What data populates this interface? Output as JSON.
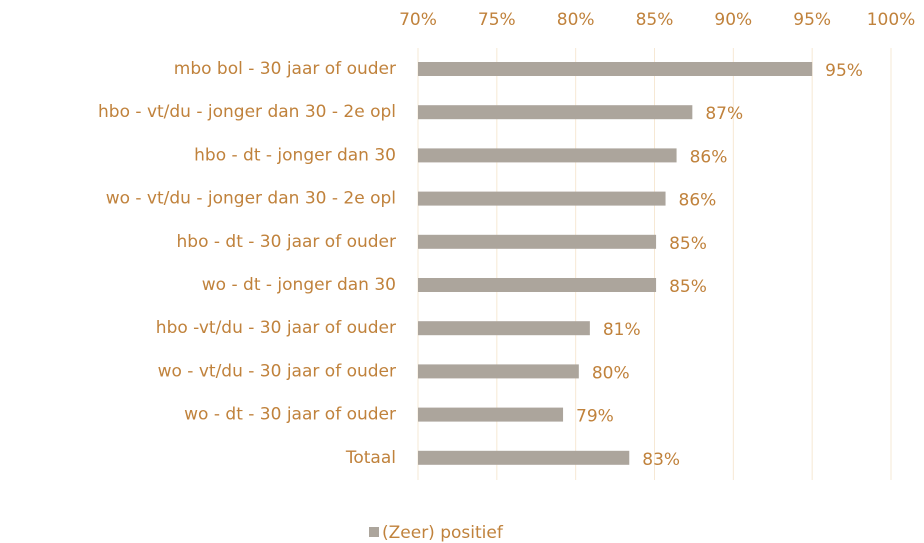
{
  "chart_data": {
    "type": "bar",
    "orientation": "horizontal",
    "categories": [
      "mbo bol - 30 jaar of ouder",
      "hbo - vt/du - jonger dan 30 - 2e opl",
      "hbo - dt - jonger dan 30",
      "wo - vt/du - jonger dan 30 - 2e opl",
      "hbo - dt - 30 jaar of ouder",
      "wo - dt - jonger dan 30",
      "hbo -vt/du - 30 jaar of ouder",
      "wo - vt/du - 30 jaar of ouder",
      "wo - dt - 30 jaar of ouder",
      "Totaal"
    ],
    "series": [
      {
        "name": "(Zeer) positief",
        "color": "#aca59c",
        "values": [
          95.0,
          87.4,
          86.4,
          85.7,
          85.1,
          85.1,
          80.9,
          80.2,
          79.2,
          83.4
        ],
        "value_labels": [
          "95%",
          "87%",
          "86%",
          "86%",
          "85%",
          "85%",
          "81%",
          "80%",
          "79%",
          "83%"
        ]
      }
    ],
    "xlim": [
      70,
      100
    ],
    "xticks": [
      {
        "value": 70,
        "label": "70%"
      },
      {
        "value": 75,
        "label": "75%"
      },
      {
        "value": 80,
        "label": "80%"
      },
      {
        "value": 85,
        "label": "85%"
      },
      {
        "value": 90,
        "label": "90%"
      },
      {
        "value": 95,
        "label": "95%"
      },
      {
        "value": 100,
        "label": "100%"
      }
    ],
    "grid": true,
    "legend": "bottom"
  }
}
